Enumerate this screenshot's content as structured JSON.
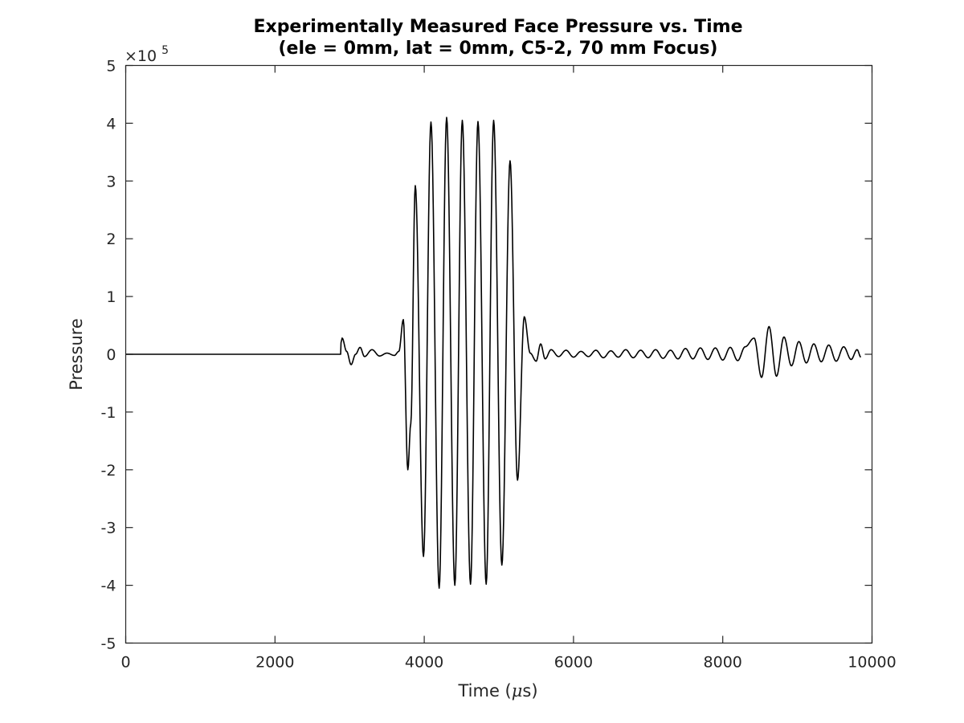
{
  "chart_data": {
    "type": "line",
    "title": "Experimentally Measured Face Pressure vs. Time",
    "subtitle": "(ele = 0mm, lat = 0mm, C5-2, 70 mm Focus)",
    "xlabel_text": "Time (",
    "xlabel_unit_symbol": "μ",
    "xlabel_unit": "s)",
    "ylabel": "Pressure",
    "y_exponent_base": "×10",
    "y_exponent_power": "5",
    "xlim": [
      0,
      10000
    ],
    "ylim": [
      -500000,
      500000
    ],
    "x_ticks": [
      0,
      2000,
      4000,
      6000,
      8000,
      10000
    ],
    "x_tick_labels": [
      "0",
      "2000",
      "4000",
      "6000",
      "8000",
      "10000"
    ],
    "y_ticks": [
      -500000,
      -400000,
      -300000,
      -200000,
      -100000,
      0,
      100000,
      200000,
      300000,
      400000,
      500000
    ],
    "y_tick_labels": [
      "-5",
      "-4",
      "-3",
      "-2",
      "-1",
      "0",
      "1",
      "2",
      "3",
      "4",
      "5"
    ],
    "grid": false,
    "line_color": "#000000",
    "series": [
      {
        "x": [
          0,
          2880,
          2885,
          2900,
          2960,
          3020,
          3080,
          3140,
          3200,
          3300,
          3400,
          3500,
          3600,
          3660,
          3720,
          3780,
          3820,
          3880,
          3990,
          4090,
          4200,
          4300,
          4410,
          4510,
          4620,
          4720,
          4830,
          4930,
          5040,
          5150,
          5250,
          5340,
          5420,
          5500,
          5560,
          5620,
          5700,
          5800,
          5900,
          6000,
          6100,
          6200,
          6300,
          6400,
          6500,
          6600,
          6700,
          6800,
          6900,
          7000,
          7100,
          7200,
          7300,
          7400,
          7500,
          7600,
          7700,
          7800,
          7900,
          8000,
          8100,
          8200,
          8300,
          8420,
          8520,
          8620,
          8720,
          8820,
          8920,
          9020,
          9120,
          9220,
          9320,
          9420,
          9520,
          9620,
          9720,
          9800,
          9850
        ],
        "y": [
          0,
          0,
          20000,
          28000,
          5000,
          -18000,
          0,
          12000,
          -4000,
          8000,
          -3000,
          2000,
          -2000,
          5000,
          60000,
          -200000,
          -120000,
          292000,
          -350000,
          402000,
          -405000,
          410000,
          -400000,
          405000,
          -398000,
          403000,
          -398000,
          405000,
          -365000,
          335000,
          -218000,
          65000,
          2000,
          -12000,
          18000,
          -8000,
          8000,
          -4000,
          7000,
          -5000,
          5000,
          -4000,
          7000,
          -6000,
          6000,
          -5000,
          8000,
          -6000,
          7000,
          -6000,
          8000,
          -7000,
          7000,
          -8000,
          10000,
          -8000,
          11000,
          -9000,
          11000,
          -10000,
          12000,
          -11000,
          13000,
          28000,
          -40000,
          48000,
          -38000,
          30000,
          -20000,
          22000,
          -15000,
          18000,
          -13000,
          16000,
          -12000,
          13000,
          -9000,
          8000,
          -5000
        ]
      }
    ]
  }
}
